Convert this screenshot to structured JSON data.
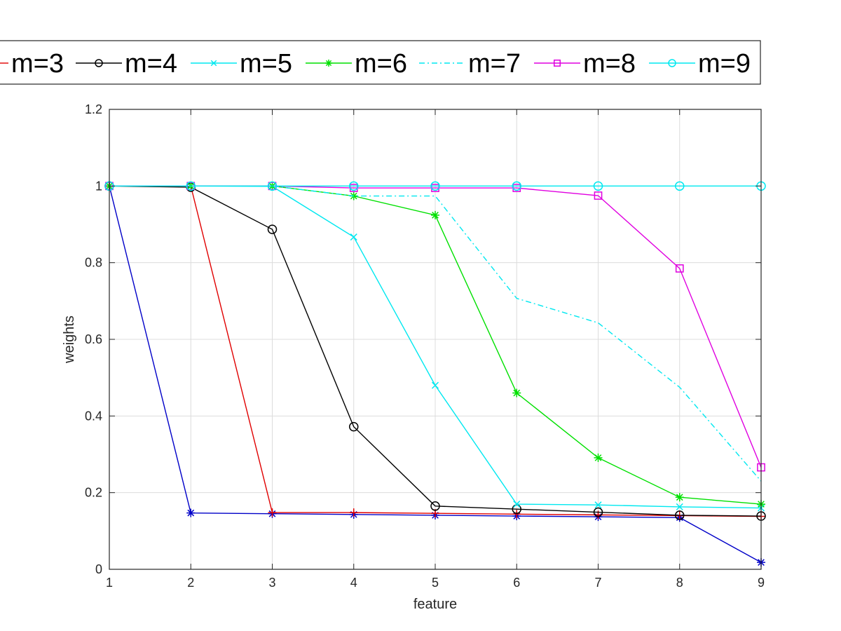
{
  "chart_data": {
    "type": "line",
    "xlabel": "feature",
    "ylabel": "weights",
    "xlim": [
      1,
      9
    ],
    "ylim": [
      0,
      1.2
    ],
    "xticks": [
      "1",
      "2",
      "3",
      "4",
      "5",
      "6",
      "7",
      "8",
      "9"
    ],
    "yticks": [
      "0",
      "0.2",
      "0.4",
      "0.6",
      "0.8",
      "1",
      "1.2"
    ],
    "grid": true,
    "legend_position": "top",
    "x": [
      1,
      2,
      3,
      4,
      5,
      6,
      7,
      8,
      9
    ],
    "series": [
      {
        "name": "",
        "color": "#0000c8",
        "marker": "asterisk",
        "dash": "solid",
        "values": [
          1.0,
          0.147,
          0.145,
          0.143,
          0.141,
          0.139,
          0.137,
          0.135,
          0.018
        ]
      },
      {
        "name": "m=3",
        "color": "#e00000",
        "marker": "plus",
        "dash": "solid",
        "values": [
          1.0,
          1.0,
          0.148,
          0.148,
          0.146,
          0.144,
          0.142,
          0.14,
          0.138
        ]
      },
      {
        "name": "m=4",
        "color": "#000000",
        "marker": "circle",
        "dash": "solid",
        "values": [
          1.0,
          0.997,
          0.887,
          0.372,
          0.165,
          0.157,
          0.149,
          0.141,
          0.139
        ]
      },
      {
        "name": "m=5",
        "color": "#00e8f0",
        "marker": "x",
        "dash": "solid",
        "values": [
          1.0,
          1.0,
          0.999,
          0.867,
          0.48,
          0.17,
          0.168,
          0.163,
          0.16
        ]
      },
      {
        "name": "m=6",
        "color": "#00e000",
        "marker": "asterisk",
        "dash": "solid",
        "values": [
          1.0,
          1.0,
          1.0,
          0.974,
          0.924,
          0.46,
          0.291,
          0.188,
          0.17
        ]
      },
      {
        "name": "m=7",
        "color": "#00e8f0",
        "marker": "none",
        "dash": "dashdot",
        "values": [
          1.0,
          1.0,
          1.0,
          0.974,
          0.974,
          0.707,
          0.643,
          0.475,
          0.23
        ]
      },
      {
        "name": "m=8",
        "color": "#e000e0",
        "marker": "square",
        "dash": "solid",
        "values": [
          1.0,
          1.0,
          1.0,
          0.995,
          0.995,
          0.995,
          0.975,
          0.785,
          0.266
        ]
      },
      {
        "name": "m=9",
        "color": "#00e8f0",
        "marker": "circle",
        "dash": "solid",
        "values": [
          1.0,
          1.0,
          1.0,
          1.0,
          1.0,
          1.0,
          1.0,
          1.0,
          1.0
        ]
      }
    ]
  }
}
